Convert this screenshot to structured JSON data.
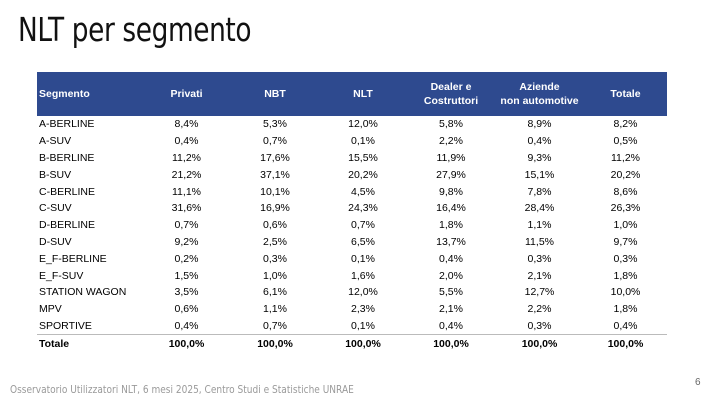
{
  "slide": {
    "title": "NLT per segmento",
    "footer": "Osservatorio Utilizzatori NLT, 6 mesi 2025, Centro Studi e Statistiche UNRAE",
    "page_number": "6"
  },
  "table": {
    "header_color": "#2e4a8f",
    "headers": [
      "Segmento",
      "Privati",
      "NBT",
      "NLT",
      "Dealer e\nCostruttori",
      "Aziende\nnon automotive",
      "Totale"
    ],
    "rows": [
      [
        "A-BERLINE",
        "8,4%",
        "5,3%",
        "12,0%",
        "5,8%",
        "8,9%",
        "8,2%"
      ],
      [
        "A-SUV",
        "0,4%",
        "0,7%",
        "0,1%",
        "2,2%",
        "0,4%",
        "0,5%"
      ],
      [
        "B-BERLINE",
        "11,2%",
        "17,6%",
        "15,5%",
        "11,9%",
        "9,3%",
        "11,2%"
      ],
      [
        "B-SUV",
        "21,2%",
        "37,1%",
        "20,2%",
        "27,9%",
        "15,1%",
        "20,2%"
      ],
      [
        "C-BERLINE",
        "11,1%",
        "10,1%",
        "4,5%",
        "9,8%",
        "7,8%",
        "8,6%"
      ],
      [
        "C-SUV",
        "31,6%",
        "16,9%",
        "24,3%",
        "16,4%",
        "28,4%",
        "26,3%"
      ],
      [
        "D-BERLINE",
        "0,7%",
        "0,6%",
        "0,7%",
        "1,8%",
        "1,1%",
        "1,0%"
      ],
      [
        "D-SUV",
        "9,2%",
        "2,5%",
        "6,5%",
        "13,7%",
        "11,5%",
        "9,7%"
      ],
      [
        "E_F-BERLINE",
        "0,2%",
        "0,3%",
        "0,1%",
        "0,4%",
        "0,3%",
        "0,3%"
      ],
      [
        "E_F-SUV",
        "1,5%",
        "1,0%",
        "1,6%",
        "2,0%",
        "2,1%",
        "1,8%"
      ],
      [
        "STATION WAGON",
        "3,5%",
        "6,1%",
        "12,0%",
        "5,5%",
        "12,7%",
        "10,0%"
      ],
      [
        "MPV",
        "0,6%",
        "1,1%",
        "2,3%",
        "2,1%",
        "2,2%",
        "1,8%"
      ],
      [
        "SPORTIVE",
        "0,4%",
        "0,7%",
        "0,1%",
        "0,4%",
        "0,3%",
        "0,4%"
      ]
    ],
    "total": [
      "Totale",
      "100,0%",
      "100,0%",
      "100,0%",
      "100,0%",
      "100,0%",
      "100,0%"
    ]
  }
}
